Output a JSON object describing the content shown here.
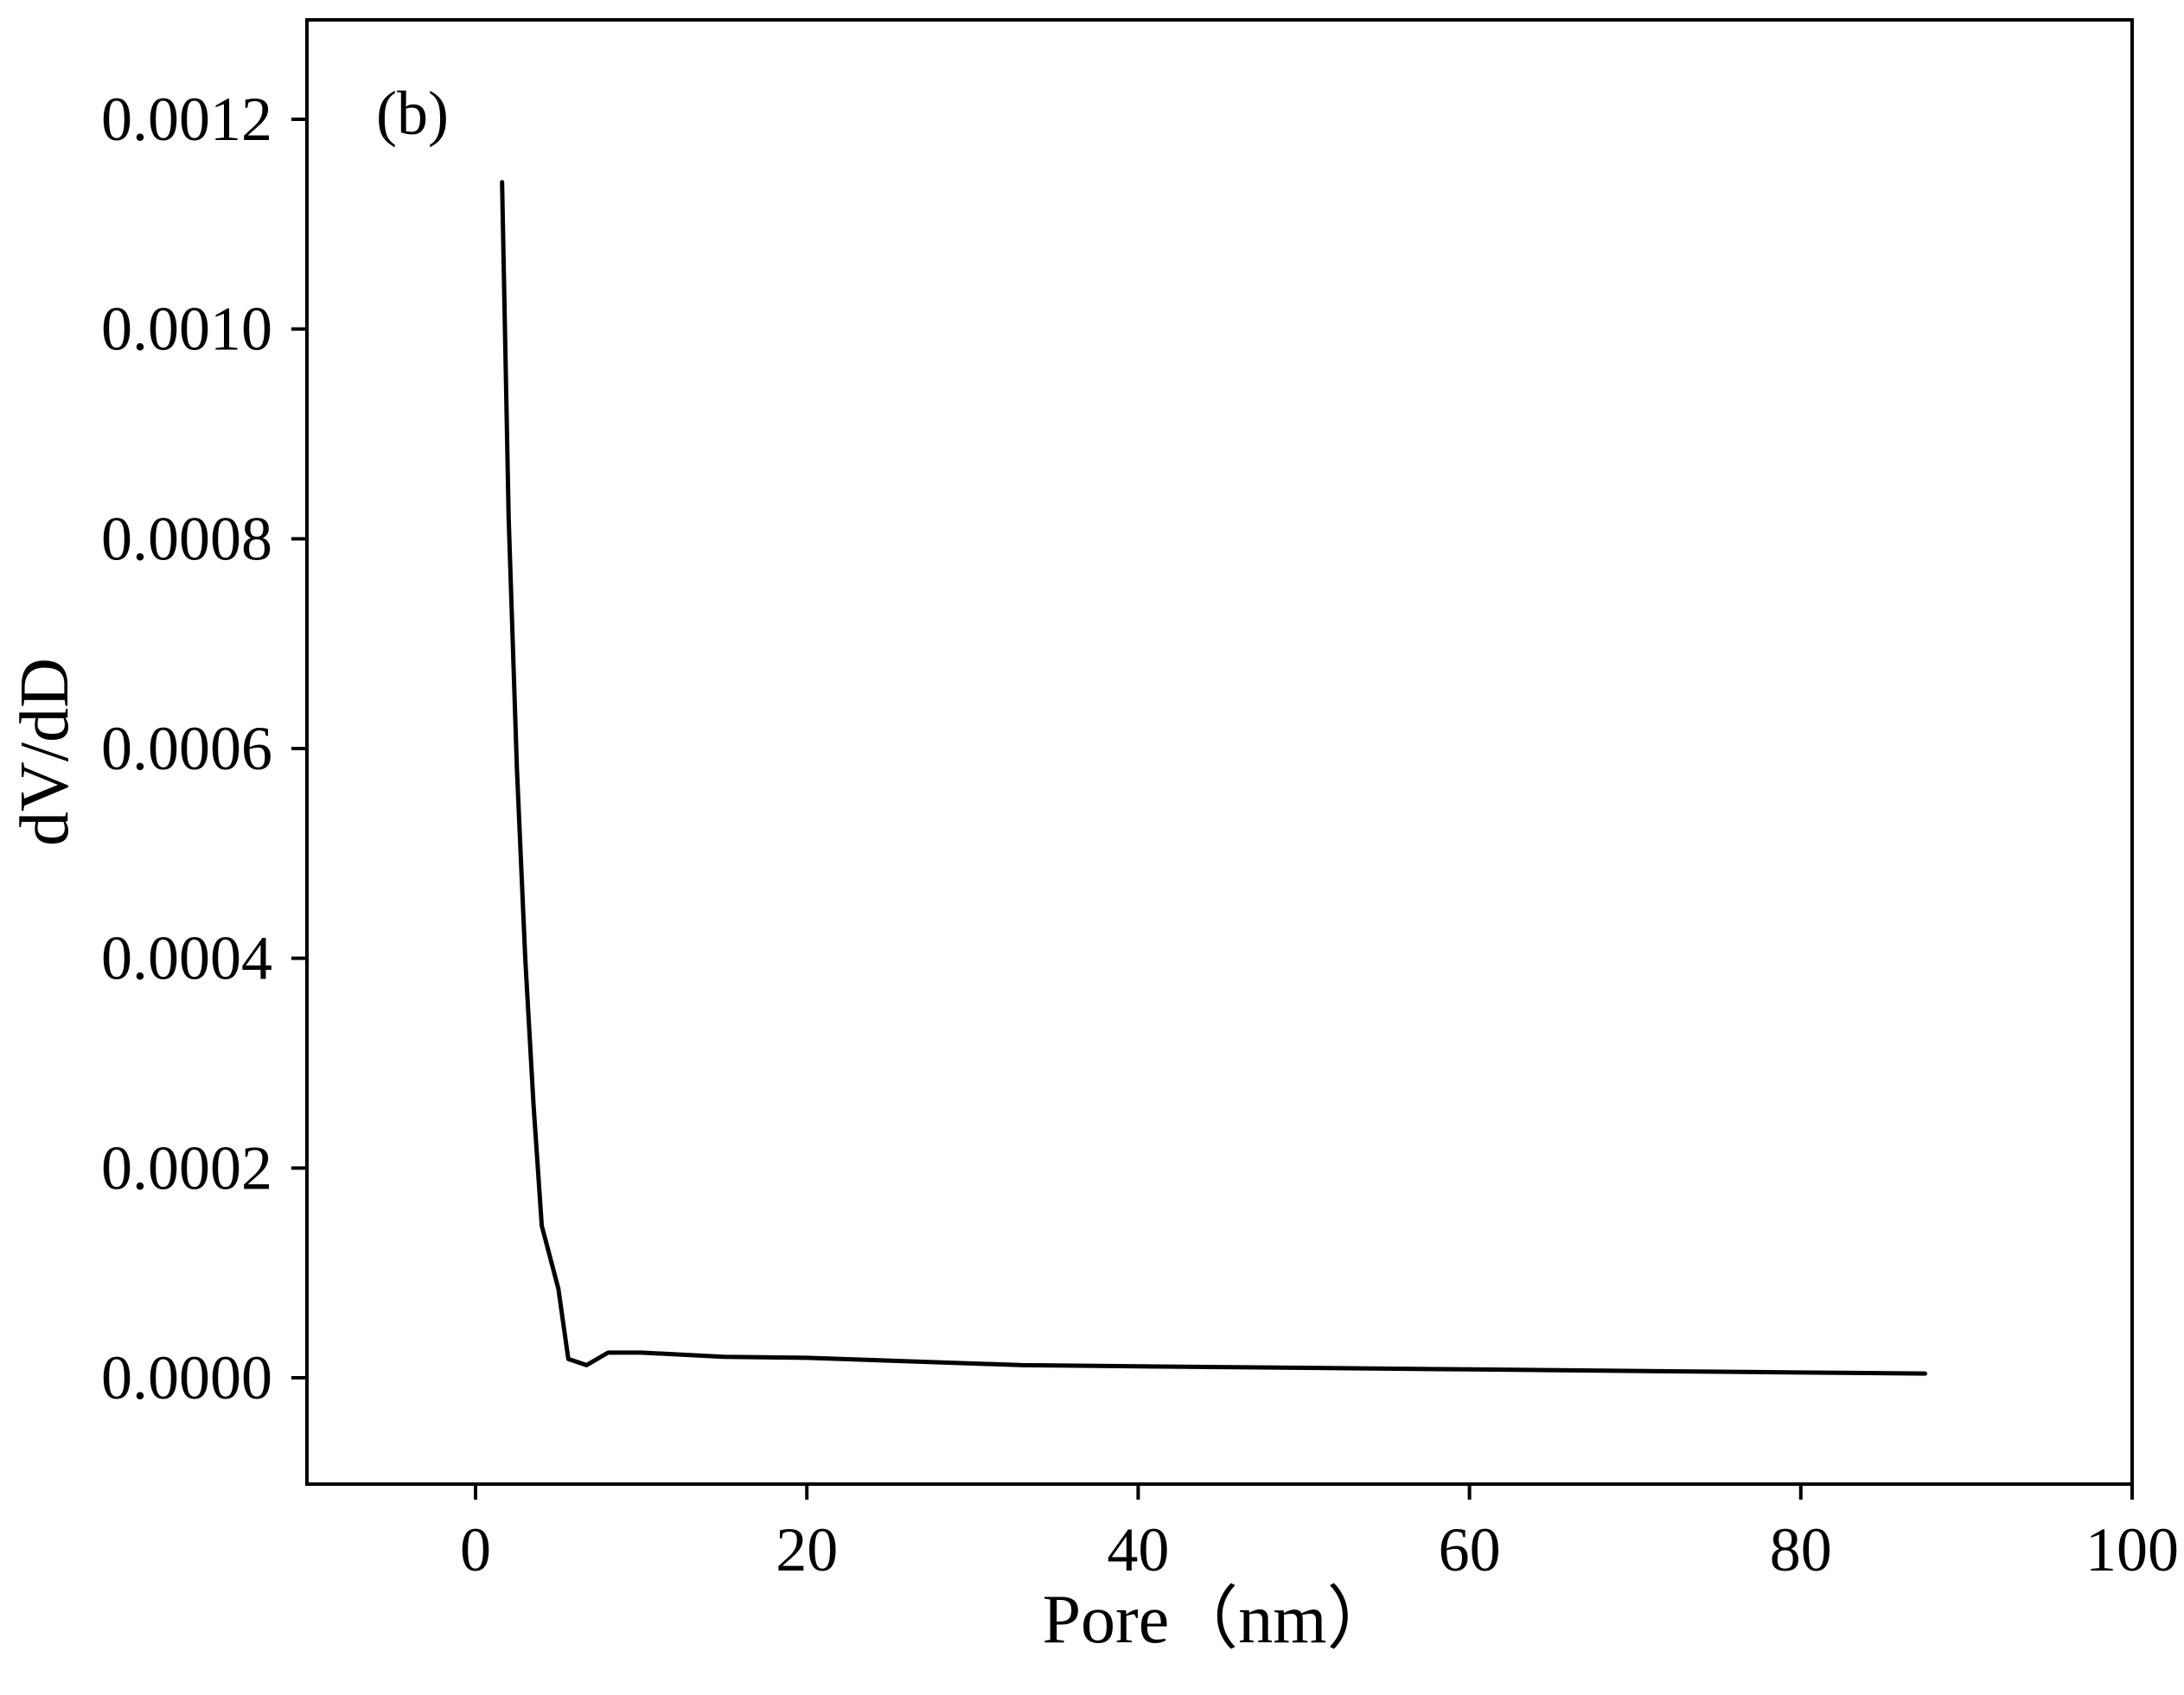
{
  "chart_data": {
    "type": "line",
    "panel_label": "(b)",
    "title": "",
    "xlabel": "Pore（nm）",
    "ylabel": "dV/dD",
    "xlim": [
      -10,
      100
    ],
    "ylim": [
      -0.0001,
      0.0013
    ],
    "x_ticks": [
      0,
      20,
      40,
      60,
      80,
      100
    ],
    "x_tick_labels": [
      "0",
      "20",
      "40",
      "60",
      "80",
      "100"
    ],
    "y_ticks": [
      0.0,
      0.0002,
      0.0004,
      0.0006,
      0.0008,
      0.001,
      0.0012
    ],
    "y_tick_labels": [
      "0.0000",
      "0.0002",
      "0.0004",
      "0.0006",
      "0.0008",
      "0.0010",
      "0.0012"
    ],
    "grid": false,
    "legend": "none",
    "line_color": "#000000",
    "series": [
      {
        "x": [
          1.6,
          2.0,
          2.5,
          3.0,
          3.5,
          4.0,
          5.0,
          5.6,
          6.7,
          8.0,
          10.0,
          15.0,
          20.0,
          33.0,
          40.0,
          60.0,
          80.0,
          87.5
        ],
        "y": [
          0.00114,
          0.00082,
          0.00058,
          0.0004,
          0.00026,
          0.000145,
          8.5e-05,
          1.8e-05,
          1.2e-05,
          2.4e-05,
          2.4e-05,
          2e-05,
          1.9e-05,
          1.2e-05,
          1.1e-05,
          8e-06,
          5e-06,
          4e-06
        ]
      }
    ]
  }
}
